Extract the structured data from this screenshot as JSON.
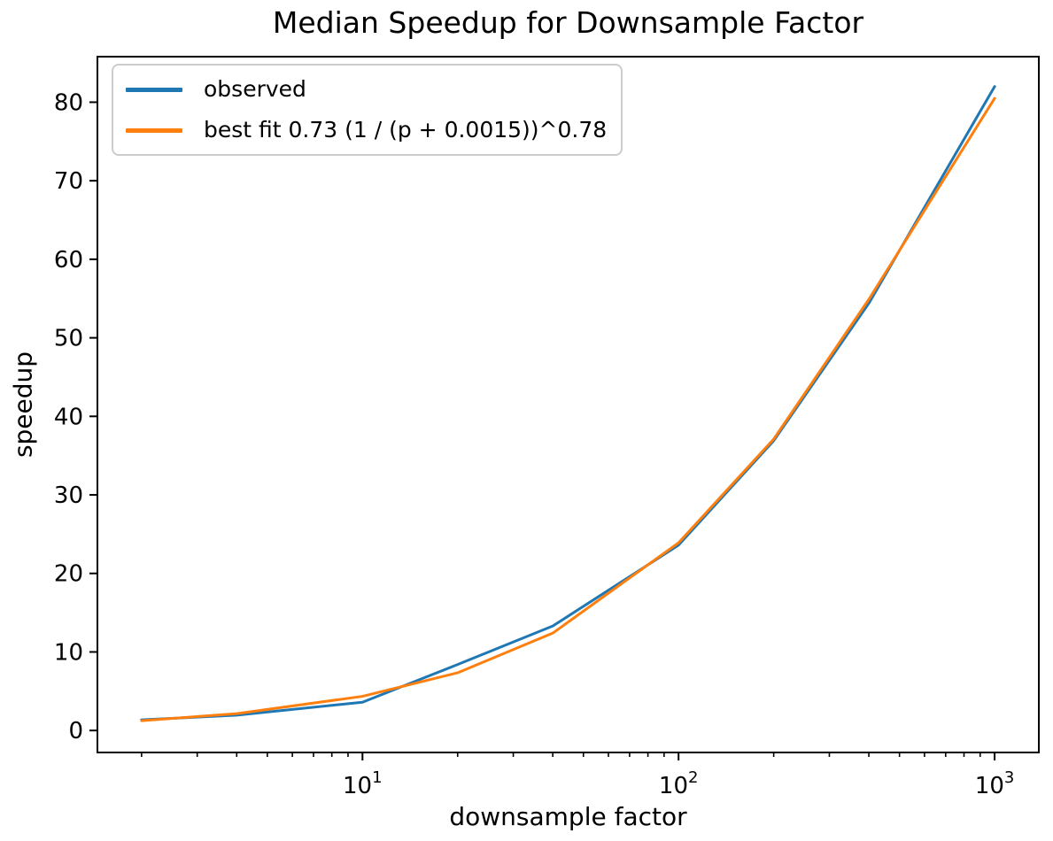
{
  "chart_data": {
    "type": "line",
    "title": "Median Speedup for Downsample Factor",
    "xlabel": "downsample factor",
    "ylabel": "speedup",
    "x_scale": "log",
    "grid": false,
    "legend_position": "upper left",
    "x": [
      2,
      4,
      10,
      20,
      40,
      100,
      200,
      400,
      1000
    ],
    "series": [
      {
        "name": "observed",
        "color": "#1f77b4",
        "values": [
          1.35,
          1.95,
          3.6,
          8.4,
          13.3,
          23.6,
          36.9,
          54.4,
          82.0
        ]
      },
      {
        "name": "best fit 0.73 (1 / (p + 0.0015))^0.78",
        "color": "#ff7f0e",
        "values": [
          1.25,
          2.15,
          4.35,
          7.35,
          12.4,
          23.9,
          37.1,
          54.9,
          80.5
        ]
      }
    ],
    "xlim": [
      1.45,
      1380
    ],
    "ylim": [
      -2.8,
      85.8
    ],
    "x_major_tick_base": "10",
    "x_major_tick_exponents": [
      "1",
      "2",
      "3"
    ],
    "y_ticks": [
      "0",
      "10",
      "20",
      "30",
      "40",
      "50",
      "60",
      "70",
      "80"
    ]
  }
}
